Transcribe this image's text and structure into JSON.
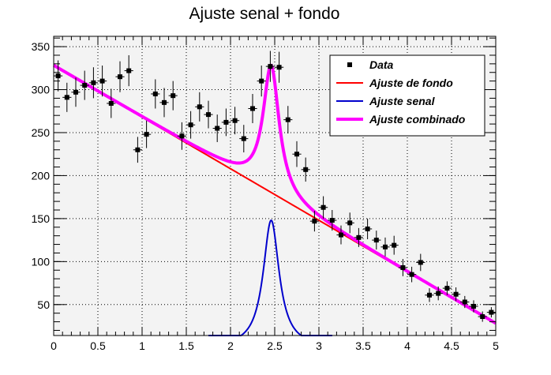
{
  "chart_data": {
    "type": "scatter",
    "title": "Ajuste senal + fondo",
    "xlabel": "",
    "ylabel": "",
    "xlim": [
      0,
      5
    ],
    "ylim": [
      14,
      362
    ],
    "grid": true,
    "legend_position": "top-right",
    "x_ticks": [
      {
        "v": 0,
        "label": "0"
      },
      {
        "v": 0.5,
        "label": "0.5"
      },
      {
        "v": 1,
        "label": "1"
      },
      {
        "v": 1.5,
        "label": "1.5"
      },
      {
        "v": 2,
        "label": "2"
      },
      {
        "v": 2.5,
        "label": "2.5"
      },
      {
        "v": 3,
        "label": "3"
      },
      {
        "v": 3.5,
        "label": "3.5"
      },
      {
        "v": 4,
        "label": "4"
      },
      {
        "v": 4.5,
        "label": "4.5"
      },
      {
        "v": 5,
        "label": "5"
      }
    ],
    "y_ticks": [
      {
        "v": 50,
        "label": "50"
      },
      {
        "v": 100,
        "label": "100"
      },
      {
        "v": 150,
        "label": "150"
      },
      {
        "v": 200,
        "label": "200"
      },
      {
        "v": 250,
        "label": "250"
      },
      {
        "v": 300,
        "label": "300"
      },
      {
        "v": 350,
        "label": "350"
      }
    ],
    "x_bin_half_width": 0.05,
    "data_points": {
      "name": "Data",
      "color": "#000000",
      "x": [
        0.05,
        0.15,
        0.25,
        0.35,
        0.45,
        0.55,
        0.65,
        0.75,
        0.85,
        0.95,
        1.05,
        1.15,
        1.25,
        1.35,
        1.45,
        1.55,
        1.65,
        1.75,
        1.85,
        1.95,
        2.05,
        2.15,
        2.25,
        2.35,
        2.45,
        2.55,
        2.65,
        2.75,
        2.85,
        2.95,
        3.05,
        3.15,
        3.25,
        3.35,
        3.45,
        3.55,
        3.65,
        3.75,
        3.85,
        3.95,
        4.05,
        4.15,
        4.25,
        4.35,
        4.45,
        4.55,
        4.65,
        4.75,
        4.85,
        4.95
      ],
      "y": [
        316,
        291,
        297,
        305,
        308,
        310,
        284,
        315,
        322,
        230,
        248,
        295,
        285,
        293,
        246,
        259,
        280,
        271,
        255,
        262,
        264,
        243,
        278,
        310,
        327,
        326,
        265,
        225,
        207,
        147,
        163,
        148,
        131,
        145,
        128,
        138,
        125,
        117,
        119,
        93,
        85,
        99,
        61,
        63,
        69,
        62,
        53,
        48,
        36,
        41
      ],
      "yerr": [
        18,
        17,
        17,
        17,
        18,
        18,
        17,
        18,
        18,
        15,
        16,
        17,
        17,
        17,
        16,
        16,
        17,
        16,
        16,
        16,
        16,
        16,
        17,
        18,
        18,
        18,
        16,
        15,
        14,
        12,
        13,
        12,
        11,
        12,
        11,
        12,
        11,
        11,
        11,
        10,
        9,
        10,
        8,
        8,
        8,
        8,
        7,
        7,
        6,
        6
      ]
    },
    "curves": [
      {
        "name": "Ajuste de fondo",
        "color": "#ff0000",
        "width": 2,
        "background": {
          "a": 328,
          "b": -60
        }
      },
      {
        "name": "Ajuste senal",
        "color": "#0000cc",
        "width": 2,
        "signal": {
          "mean": 2.46,
          "width": 0.11,
          "amplitude": 148
        },
        "x_range": [
          1.75,
          3.15
        ]
      },
      {
        "name": "Ajuste combinado",
        "color": "#ff00ff",
        "width": 4,
        "background": {
          "a": 328,
          "b": -60
        },
        "signal": {
          "mean": 2.46,
          "width": 0.11,
          "amplitude": 148
        }
      }
    ]
  }
}
